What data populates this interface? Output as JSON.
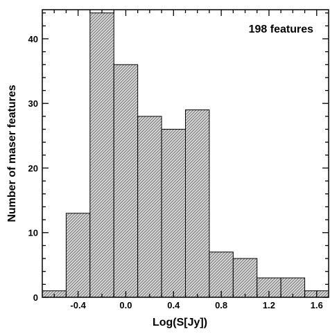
{
  "chart_data": {
    "type": "bar",
    "title": "",
    "xlabel": "Log(S[Jy])",
    "ylabel": "Number of maser features",
    "annotation": "198 features",
    "bin_edges": [
      -0.7,
      -0.5,
      -0.3,
      -0.1,
      0.1,
      0.3,
      0.5,
      0.7,
      0.9,
      1.1,
      1.3,
      1.5,
      1.7
    ],
    "values": [
      1,
      13,
      44,
      36,
      28,
      26,
      29,
      7,
      6,
      3,
      3,
      1
    ],
    "xlim": [
      -0.7,
      1.7
    ],
    "ylim": [
      0,
      44.5
    ],
    "xticks": [
      -0.4,
      0.0,
      0.4,
      0.8,
      1.2,
      1.6
    ],
    "xtick_labels": [
      "-0.4",
      "0.0",
      "0.4",
      "0.8",
      "1.2",
      "1.6"
    ],
    "yticks": [
      0,
      10,
      20,
      30,
      40
    ],
    "ytick_labels": [
      "0",
      "10",
      "20",
      "30",
      "40"
    ],
    "grid": false,
    "bar_fill": "hatched-gray"
  }
}
